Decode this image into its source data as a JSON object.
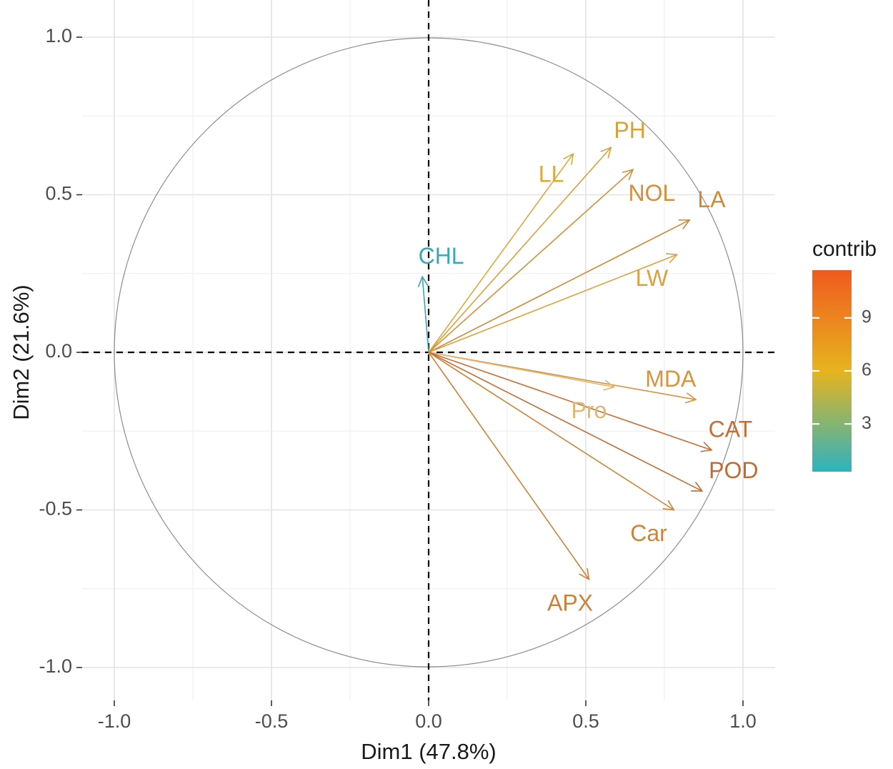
{
  "chart_data": {
    "type": "scatter",
    "subtype": "pca-variables-correlation-circle",
    "xlabel": "Dim1 (47.8%)",
    "ylabel": "Dim2 (21.6%)",
    "xlim": [
      -1.1,
      1.1
    ],
    "ylim": [
      -1.1,
      1.1
    ],
    "x_ticks": [
      -1.0,
      -0.5,
      0.0,
      0.5,
      1.0
    ],
    "y_ticks": [
      -1.0,
      -0.5,
      0.0,
      0.5,
      1.0
    ],
    "x_tick_labels": [
      "-1.0",
      "-0.5",
      "0.0",
      "0.5",
      "1.0"
    ],
    "y_tick_labels": [
      "-1.0",
      "-0.5",
      "0.0",
      "0.5",
      "1.0"
    ],
    "grid": true,
    "legend": {
      "title": "contrib",
      "position": "right",
      "range": [
        0.3,
        11.7
      ],
      "ticks": [
        3,
        6,
        9
      ],
      "tick_labels": [
        "3",
        "6",
        "9"
      ],
      "colors": [
        "#2eb3c0",
        "#e6b41e",
        "#f05a1e"
      ]
    },
    "variables": [
      {
        "name": "PH",
        "x": 0.58,
        "y": 0.65,
        "label_x": 0.64,
        "label_y": 0.7,
        "color": "#d8a13a"
      },
      {
        "name": "LL",
        "x": 0.46,
        "y": 0.63,
        "label_x": 0.39,
        "label_y": 0.56,
        "color": "#d9aa3a"
      },
      {
        "name": "NOL",
        "x": 0.65,
        "y": 0.58,
        "label_x": 0.71,
        "label_y": 0.5,
        "color": "#d2903a"
      },
      {
        "name": "LA",
        "x": 0.83,
        "y": 0.42,
        "label_x": 0.9,
        "label_y": 0.48,
        "color": "#cd8a36"
      },
      {
        "name": "LW",
        "x": 0.79,
        "y": 0.31,
        "label_x": 0.71,
        "label_y": 0.23,
        "color": "#d8a340"
      },
      {
        "name": "CHL",
        "x": -0.02,
        "y": 0.24,
        "label_x": 0.04,
        "label_y": 0.3,
        "color": "#3aa8b5"
      },
      {
        "name": "MDA",
        "x": 0.85,
        "y": -0.15,
        "label_x": 0.77,
        "label_y": -0.09,
        "color": "#d49440"
      },
      {
        "name": "Pro",
        "x": 0.59,
        "y": -0.11,
        "label_x": 0.51,
        "label_y": -0.19,
        "color": "#e1b673"
      },
      {
        "name": "CAT",
        "x": 0.9,
        "y": -0.31,
        "label_x": 0.96,
        "label_y": -0.25,
        "color": "#c46f35"
      },
      {
        "name": "POD",
        "x": 0.87,
        "y": -0.44,
        "label_x": 0.97,
        "label_y": -0.38,
        "color": "#c16a32"
      },
      {
        "name": "Car",
        "x": 0.78,
        "y": -0.5,
        "label_x": 0.7,
        "label_y": -0.58,
        "color": "#cd8438"
      },
      {
        "name": "APX",
        "x": 0.51,
        "y": -0.72,
        "label_x": 0.45,
        "label_y": -0.8,
        "color": "#cb8237"
      }
    ]
  }
}
